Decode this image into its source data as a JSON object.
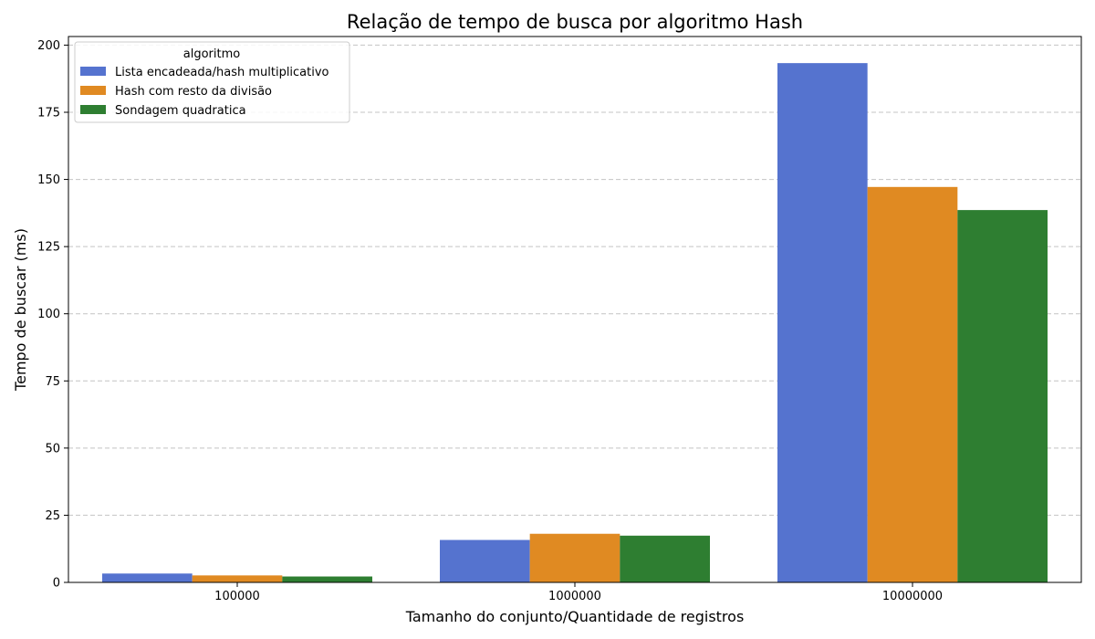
{
  "chart_data": {
    "type": "bar",
    "title": "Relação de tempo de busca por algoritmo Hash",
    "xlabel": "Tamanho do conjunto/Quantidade de registros",
    "ylabel": "Tempo de buscar (ms)",
    "categories": [
      "100000",
      "1000000",
      "10000000"
    ],
    "series": [
      {
        "name": "Lista encadeada/hash multiplicativo",
        "values": [
          3.3,
          15.8,
          193.3
        ],
        "color": "#5573cf"
      },
      {
        "name": "Hash com resto da divisão",
        "values": [
          2.6,
          18.1,
          147.2
        ],
        "color": "#e08a22"
      },
      {
        "name": "Sondagem quadratica",
        "values": [
          2.2,
          17.4,
          138.6
        ],
        "color": "#2e7e31"
      }
    ],
    "ylim": [
      0,
      203.2
    ],
    "yticks": [
      0,
      25,
      50,
      75,
      100,
      125,
      150,
      175,
      200
    ],
    "grid": true,
    "legend": {
      "title": "algoritmo",
      "placement": "top-left"
    }
  }
}
